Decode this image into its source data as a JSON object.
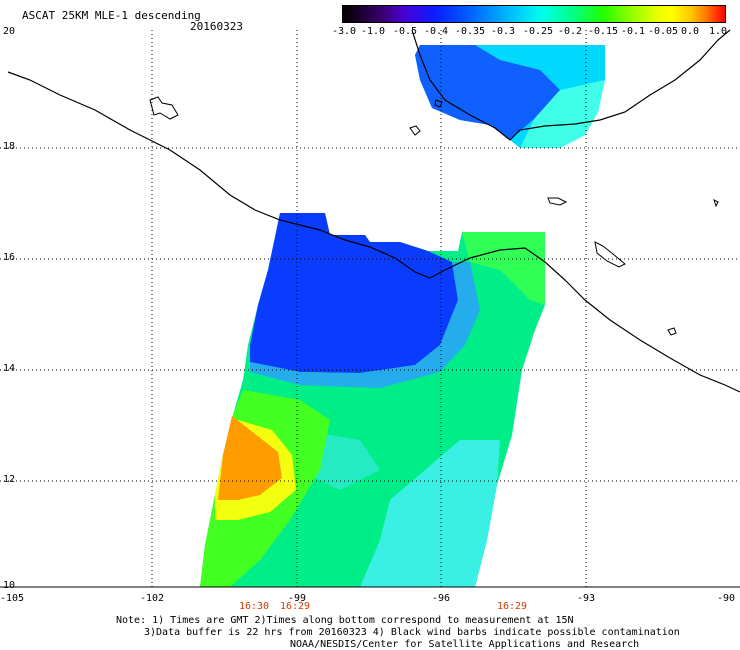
{
  "title": "ASCAT 25KM MLE-1 descending",
  "date": "20160323",
  "colorbar": {
    "ticks": [
      "-3.0",
      "-1.0",
      "-0.5",
      "-0.4",
      "-0.35",
      "-0.3",
      "-0.25",
      "-0.2",
      "-0.15",
      "-0.1",
      "-0.05",
      "0.0",
      "1.0"
    ],
    "colors": [
      "#000000",
      "#3a006a",
      "#4a00d4",
      "#0a1cff",
      "#0066ff",
      "#00b6ff",
      "#00ffee",
      "#00ff88",
      "#22ff00",
      "#99ff00",
      "#e6ff00",
      "#ffc800",
      "#ff0000"
    ]
  },
  "axes": {
    "lat_labels": [
      "20",
      "18",
      "16",
      "14",
      "12",
      "10"
    ],
    "lon_labels": [
      "-105",
      "-102",
      "-99",
      "-96",
      "-93",
      "-90"
    ],
    "lat_range": [
      10,
      20
    ],
    "lon_range": [
      -105,
      -90
    ]
  },
  "times": [
    "16:30",
    "16:29",
    "16:29"
  ],
  "notes": [
    "Note: 1) Times are GMT 2)Times along bottom correspond to measurement at 15N",
    "3)Data buffer is 22 hrs from 20160323 4) Black wind barbs indicate possible contamination",
    "NOAA/NESDIS/Center for Satellite Applications and Research"
  ]
}
